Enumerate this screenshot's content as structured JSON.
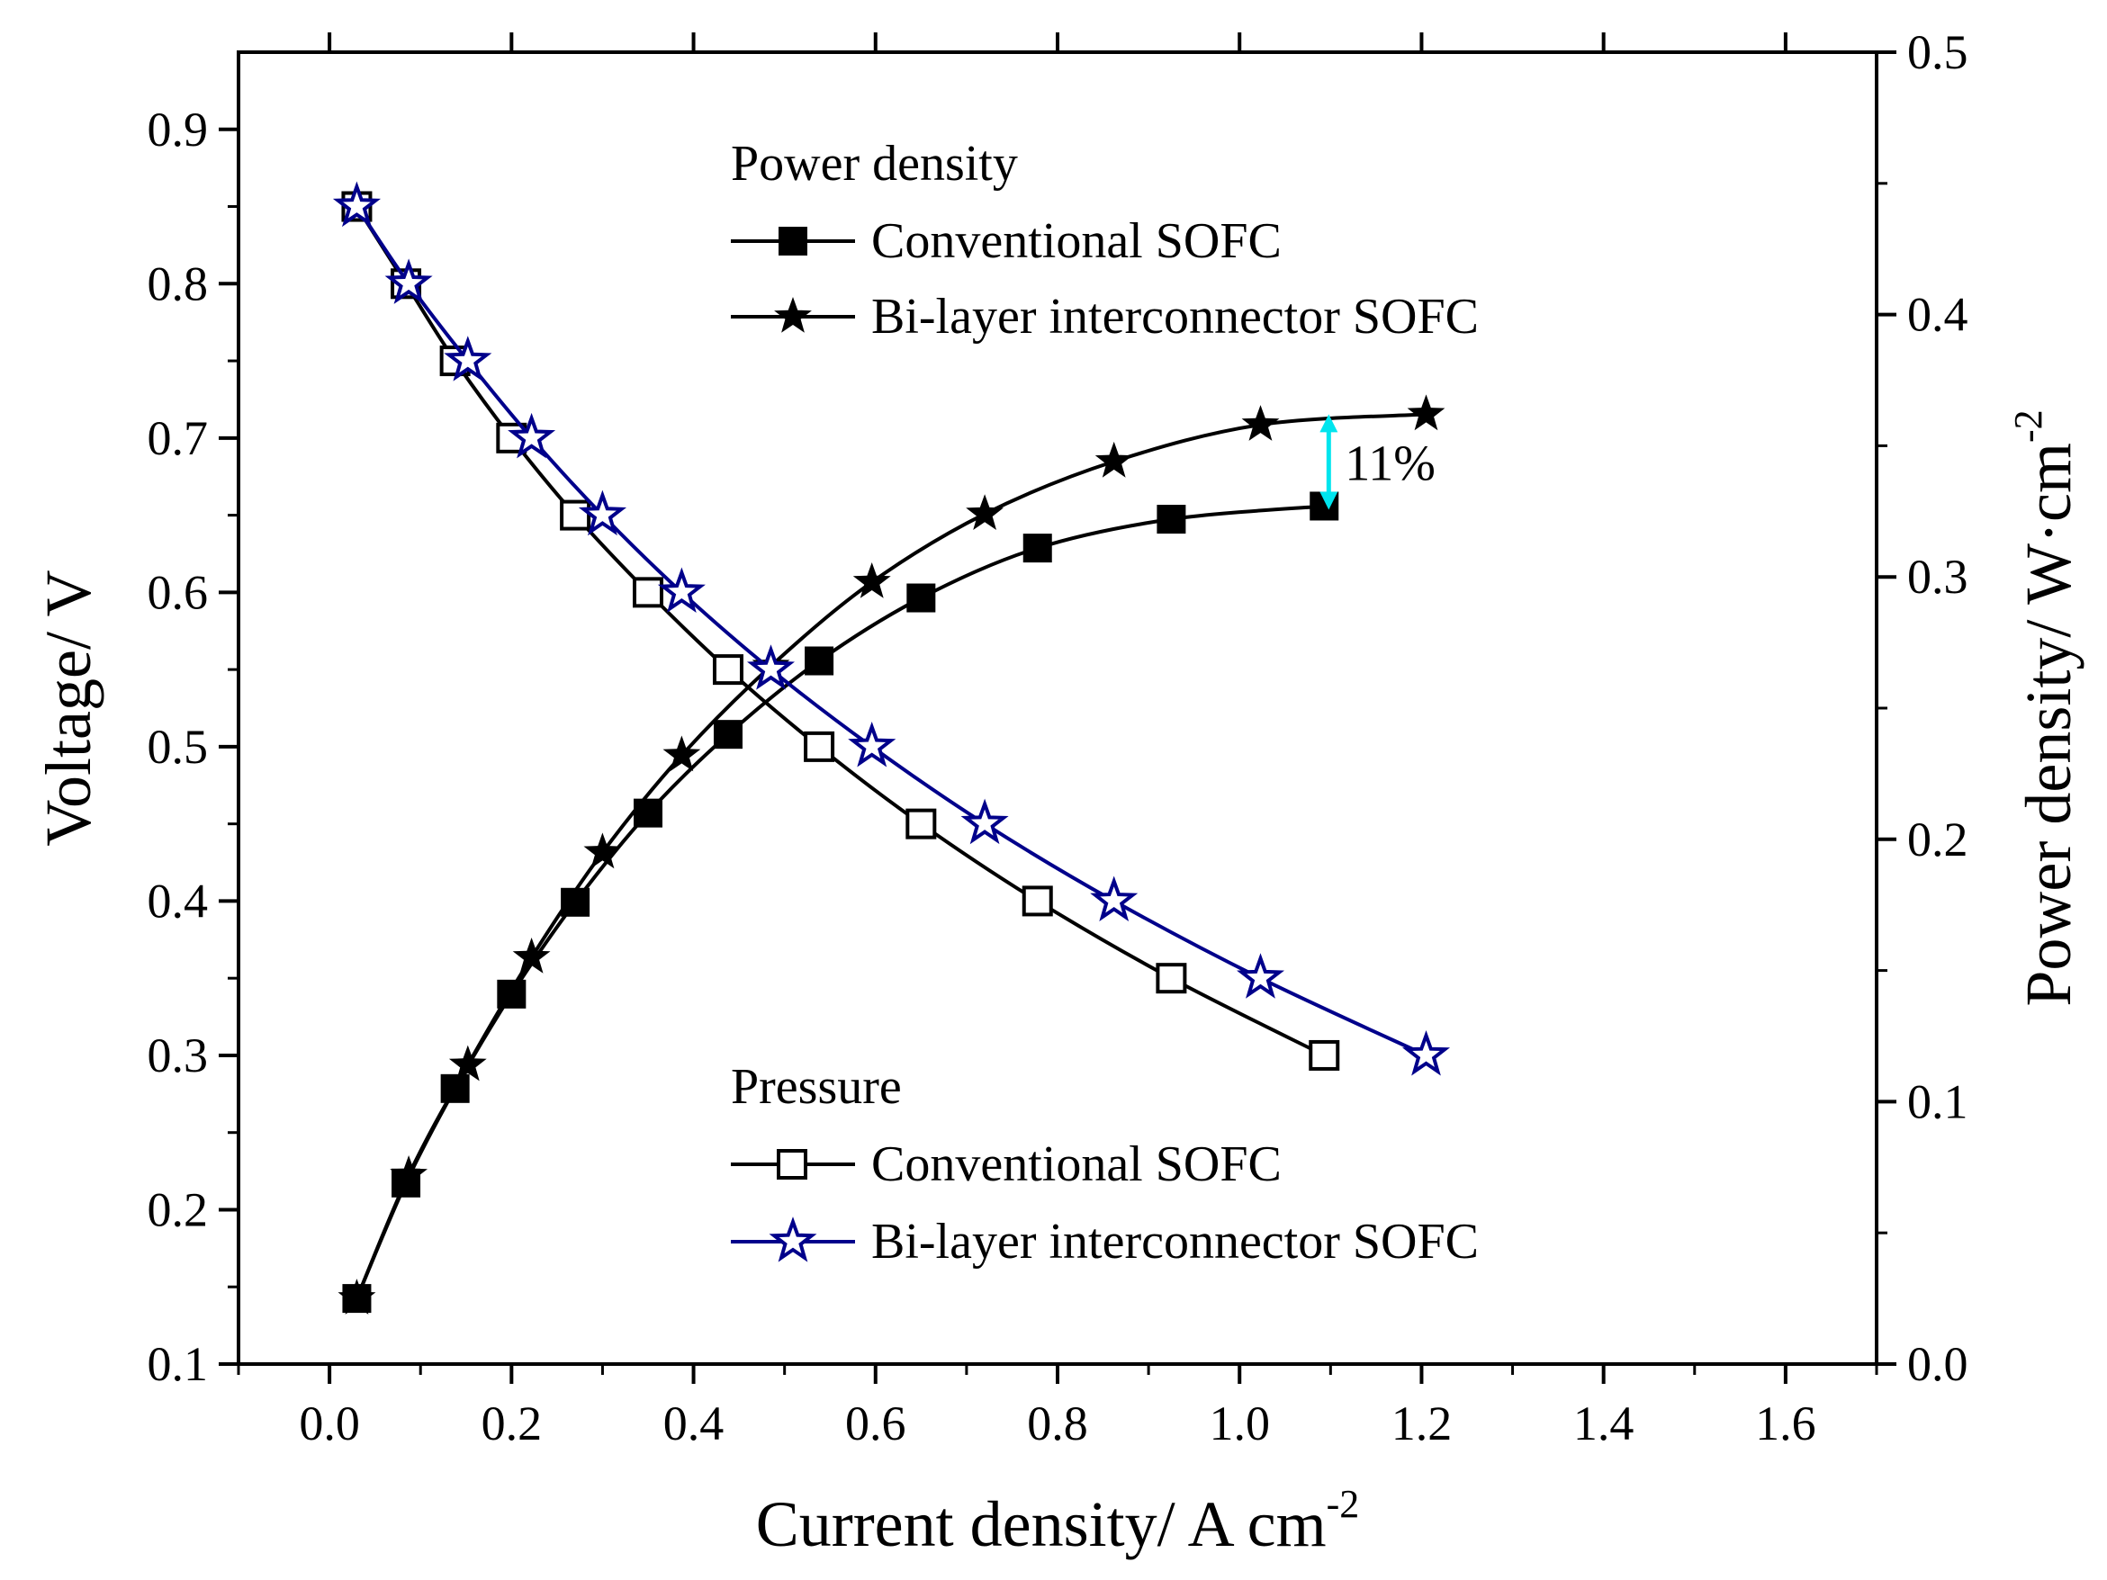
{
  "chart_data": {
    "type": "line",
    "xlabel": "Current density/ A cm",
    "xlabel_sup": "-2",
    "ylabel_left": "Voltage/ V",
    "ylabel_right": "Power density/ W·cm",
    "ylabel_right_sup": "-2",
    "xlim": [
      -0.1,
      1.7
    ],
    "ylim_left": [
      0.1,
      0.95
    ],
    "ylim_right": [
      0.0,
      0.5
    ],
    "x_ticks": [
      "0.0",
      "0.2",
      "0.4",
      "0.6",
      "0.8",
      "1.0",
      "1.2",
      "1.4",
      "1.6"
    ],
    "x_tick_values": [
      0.0,
      0.2,
      0.4,
      0.6,
      0.8,
      1.0,
      1.2,
      1.4,
      1.6
    ],
    "y_left_ticks": [
      "0.1",
      "0.2",
      "0.3",
      "0.4",
      "0.5",
      "0.6",
      "0.7",
      "0.8",
      "0.9"
    ],
    "y_left_tick_values": [
      0.1,
      0.2,
      0.3,
      0.4,
      0.5,
      0.6,
      0.7,
      0.8,
      0.9
    ],
    "y_right_ticks": [
      "0.0",
      "0.1",
      "0.2",
      "0.3",
      "0.4",
      "0.5"
    ],
    "y_right_tick_values": [
      0.0,
      0.1,
      0.2,
      0.3,
      0.4,
      0.5
    ],
    "legend_power_title": "Power density",
    "legend_voltage_title": "Pressure",
    "series": [
      {
        "name": "Conventional SOFC",
        "group": "power",
        "axis": "right",
        "marker": "square-filled",
        "color": "#000000",
        "x": [
          0.03,
          0.084,
          0.138,
          0.2,
          0.27,
          0.35,
          0.438,
          0.538,
          0.65,
          0.778,
          0.925,
          1.093
        ],
        "y": [
          0.025,
          0.069,
          0.105,
          0.141,
          0.176,
          0.21,
          0.24,
          0.268,
          0.292,
          0.311,
          0.322,
          0.327
        ]
      },
      {
        "name": "Bi-layer interconnector SOFC",
        "group": "power",
        "axis": "right",
        "marker": "star-filled",
        "color": "#000000",
        "x": [
          0.03,
          0.087,
          0.152,
          0.222,
          0.3,
          0.387,
          0.485,
          0.596,
          0.72,
          0.862,
          1.023,
          1.205
        ],
        "y": [
          0.025,
          0.072,
          0.114,
          0.155,
          0.195,
          0.232,
          0.266,
          0.298,
          0.324,
          0.344,
          0.358,
          0.362
        ]
      },
      {
        "name": "Conventional SOFC",
        "group": "voltage",
        "axis": "left",
        "marker": "square-open",
        "color": "#000000",
        "x": [
          0.03,
          0.084,
          0.138,
          0.2,
          0.27,
          0.35,
          0.438,
          0.538,
          0.65,
          0.778,
          0.925,
          1.093
        ],
        "y": [
          0.85,
          0.8,
          0.75,
          0.7,
          0.65,
          0.6,
          0.55,
          0.5,
          0.45,
          0.4,
          0.35,
          0.3
        ]
      },
      {
        "name": "Bi-layer interconnector SOFC",
        "group": "voltage",
        "axis": "left",
        "marker": "star-open",
        "color": "#00008b",
        "x": [
          0.03,
          0.087,
          0.152,
          0.222,
          0.3,
          0.387,
          0.485,
          0.596,
          0.72,
          0.862,
          1.023,
          1.205
        ],
        "y": [
          0.85,
          0.8,
          0.75,
          0.7,
          0.65,
          0.6,
          0.55,
          0.5,
          0.45,
          0.4,
          0.35,
          0.3
        ]
      }
    ],
    "annotation": {
      "text": "11%",
      "x": 1.098,
      "y_top": 0.362,
      "y_bottom": 0.327,
      "color": "#00e5ee"
    }
  }
}
